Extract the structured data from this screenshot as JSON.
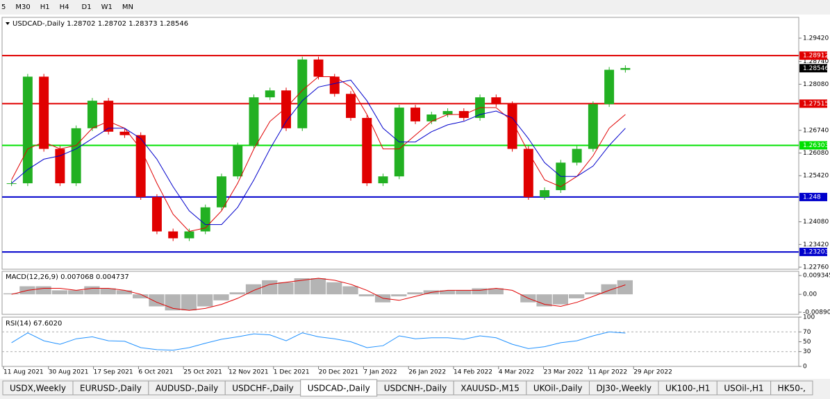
{
  "toolbar": [
    "5",
    "M30",
    "H1",
    "H4",
    "D1",
    "W1",
    "MN"
  ],
  "chart_data": [
    {
      "type": "candlestick",
      "title": "USDCAD-,Daily  1.28702 1.28702 1.28373 1.28546",
      "values": [
        1.252,
        1.283,
        1.262,
        1.252,
        1.268,
        1.276,
        1.267,
        1.266,
        1.248,
        1.238,
        1.236,
        1.238,
        1.245,
        1.254,
        1.263,
        1.277,
        1.279,
        1.268,
        1.288,
        1.283,
        1.278,
        1.271,
        1.252,
        1.254,
        1.274,
        1.27,
        1.272,
        1.273,
        1.271,
        1.277,
        1.275,
        1.262,
        1.248,
        1.25,
        1.258,
        1.262,
        1.275,
        1.285,
        1.2855
      ],
      "up_color": "#22b022",
      "down_color": "#e00000",
      "ma_fast": [
        1.253,
        1.262,
        1.264,
        1.262,
        1.263,
        1.268,
        1.27,
        1.268,
        1.262,
        1.252,
        1.243,
        1.238,
        1.239,
        1.244,
        1.252,
        1.262,
        1.27,
        1.274,
        1.279,
        1.283,
        1.283,
        1.28,
        1.272,
        1.262,
        1.262,
        1.266,
        1.27,
        1.272,
        1.272,
        1.274,
        1.274,
        1.27,
        1.261,
        1.253,
        1.251,
        1.254,
        1.26,
        1.268,
        1.272
      ],
      "ma_fast_color": "#e00000",
      "ma_slow": [
        1.252,
        1.256,
        1.259,
        1.26,
        1.262,
        1.265,
        1.268,
        1.268,
        1.265,
        1.259,
        1.251,
        1.244,
        1.24,
        1.24,
        1.245,
        1.253,
        1.262,
        1.27,
        1.276,
        1.28,
        1.281,
        1.282,
        1.276,
        1.268,
        1.264,
        1.264,
        1.267,
        1.269,
        1.27,
        1.272,
        1.273,
        1.271,
        1.265,
        1.258,
        1.254,
        1.254,
        1.257,
        1.263,
        1.268
      ],
      "ma_slow_color": "#0000cc",
      "ylim": [
        1.227,
        1.30025
      ],
      "yticks": [
        {
          "value": 1.2942,
          "label": "1.29420"
        },
        {
          "value": 1.2874,
          "label": "1.28740"
        },
        {
          "value": 1.2808,
          "label": "1.28080"
        },
        {
          "value": 1.2674,
          "label": "1.26740"
        },
        {
          "value": 1.2608,
          "label": "1.26080"
        },
        {
          "value": 1.2542,
          "label": "1.25420"
        },
        {
          "value": 1.2408,
          "label": "1.24080"
        },
        {
          "value": 1.2342,
          "label": "1.23420"
        },
        {
          "value": 1.2276,
          "label": "1.22760"
        }
      ],
      "levels": [
        {
          "value": 1.28912,
          "color": "#e00000"
        },
        {
          "value": 1.27515,
          "color": "#e00000"
        },
        {
          "value": 1.26303,
          "color": "#00e000"
        },
        {
          "value": 1.248,
          "color": "#0000cc"
        },
        {
          "value": 1.23203,
          "color": "#0000cc"
        }
      ],
      "last": 1.28546,
      "xlabels": [
        "11 Aug 2021",
        "30 Aug 2021",
        "17 Sep 2021",
        "6 Oct 2021",
        "25 Oct 2021",
        "12 Nov 2021",
        "1 Dec 2021",
        "20 Dec 2021",
        "7 Jan 2022",
        "26 Jan 2022",
        "14 Feb 2022",
        "4 Mar 2022",
        "23 Mar 2022",
        "11 Apr 2022",
        "29 Apr 2022"
      ]
    },
    {
      "type": "macd",
      "title": "MACD(12,26,9) 0.007068 0.004737",
      "values": [
        0.0005,
        0.004,
        0.004,
        0.002,
        0.002,
        0.004,
        0.003,
        0.002,
        -0.002,
        -0.006,
        -0.008,
        -0.008,
        -0.006,
        -0.003,
        0.001,
        0.005,
        0.007,
        0.006,
        0.008,
        0.008,
        0.006,
        0.004,
        -0.001,
        -0.004,
        -0.001,
        0.001,
        0.002,
        0.002,
        0.002,
        0.003,
        0.003,
        0.0,
        -0.004,
        -0.006,
        -0.005,
        -0.002,
        0.001,
        0.005,
        0.007
      ],
      "color": "#b4b4b4",
      "signal": [
        0.0,
        0.002,
        0.003,
        0.003,
        0.002,
        0.003,
        0.003,
        0.002,
        0.0,
        -0.004,
        -0.007,
        -0.008,
        -0.007,
        -0.005,
        -0.002,
        0.002,
        0.005,
        0.006,
        0.007,
        0.008,
        0.007,
        0.005,
        0.002,
        -0.002,
        -0.003,
        -0.001,
        0.001,
        0.002,
        0.002,
        0.002,
        0.003,
        0.002,
        -0.002,
        -0.005,
        -0.006,
        -0.004,
        -0.001,
        0.002,
        0.0047
      ],
      "signal_color": "#e00000",
      "ylim": [
        -0.00996,
        0.01145
      ],
      "yticks": [
        0.009345,
        {
          "value": 0,
          "label": "0.00"
        },
        -0.008902
      ]
    },
    {
      "type": "rsi",
      "title": "RSI(14) 67.6020",
      "values": [
        48,
        68,
        52,
        45,
        56,
        60,
        52,
        51,
        38,
        34,
        33,
        38,
        47,
        55,
        60,
        66,
        64,
        52,
        68,
        60,
        56,
        50,
        38,
        42,
        62,
        56,
        58,
        58,
        55,
        62,
        58,
        45,
        36,
        40,
        48,
        52,
        62,
        70,
        67.6
      ],
      "color": "#1e90ff",
      "ylim": [
        0,
        100
      ],
      "yticks": [
        100,
        70,
        50,
        30,
        0
      ],
      "levels": [
        70,
        30
      ]
    }
  ],
  "tabs": [
    "USDX,Weekly",
    "EURUSD-,Daily",
    "AUDUSD-,Daily",
    "USDCHF-,Daily",
    "USDCAD-,Daily",
    "USDCNH-,Daily",
    "XAUUSD-,M15",
    "UKOil-,Daily",
    "DJ30-,Weekly",
    "UK100-,H1",
    "USOil-,H1",
    "HK50-,"
  ],
  "active_tab": 4
}
